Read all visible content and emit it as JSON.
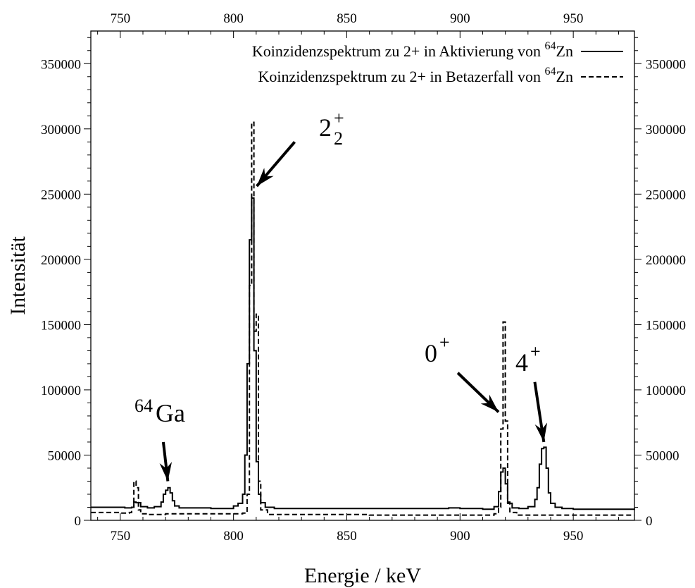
{
  "chart_data": {
    "type": "line",
    "xlabel": "Energie / keV",
    "ylabel": "Intensität",
    "xlim": [
      737,
      977
    ],
    "ylim": [
      0,
      375000
    ],
    "x_ticks": [
      750,
      800,
      850,
      900,
      950
    ],
    "y_ticks": [
      0,
      50000,
      100000,
      150000,
      200000,
      250000,
      300000,
      350000
    ],
    "grid": false,
    "legend_position": "top-right",
    "series": [
      {
        "name": "Koinzidenzspektrum zu 2+ in Aktivierung von 64Zn",
        "name_parts": {
          "text": "Koinzidenzspektrum zu 2+ in Aktivierung von ",
          "sup": "64",
          "tail": "Zn"
        },
        "style": "solid",
        "x": [
          737,
          745,
          752,
          755,
          756,
          757,
          759,
          762,
          765,
          768,
          769,
          770,
          771,
          772,
          773,
          774,
          776,
          780,
          790,
          800,
          802,
          804,
          805,
          806,
          807,
          808,
          809,
          810,
          811,
          812,
          814,
          818,
          830,
          850,
          880,
          895,
          900,
          910,
          915,
          917,
          918,
          919,
          920,
          921,
          923,
          926,
          930,
          933,
          934,
          935,
          936,
          937,
          938,
          939,
          940,
          942,
          945,
          950,
          960,
          977
        ],
        "y": [
          10000,
          10000,
          9500,
          10000,
          14000,
          13500,
          10500,
          9500,
          10500,
          14000,
          20000,
          23000,
          25000,
          21000,
          15000,
          11000,
          9500,
          9500,
          9000,
          11000,
          13000,
          20000,
          50000,
          120000,
          215000,
          247000,
          130000,
          45000,
          20000,
          13500,
          10000,
          9000,
          9000,
          9000,
          9000,
          9500,
          9000,
          8500,
          10500,
          22000,
          37000,
          40000,
          28000,
          13000,
          9500,
          9000,
          10500,
          16000,
          25000,
          43000,
          55000,
          56000,
          40000,
          21000,
          13000,
          10000,
          9000,
          8500,
          8500,
          8000
        ]
      },
      {
        "name": "Koinzidenzspektrum zu 2+ in Betazerfall von 64Zn",
        "name_parts": {
          "text": "Koinzidenzspektrum zu 2+ in Betazerfall von ",
          "sup": "64",
          "tail": "Zn"
        },
        "style": "dashed",
        "x": [
          737,
          750,
          754,
          755,
          756,
          757,
          758,
          759,
          762,
          770,
          780,
          800,
          804,
          806,
          807,
          808,
          809,
          810,
          811,
          812,
          815,
          830,
          860,
          900,
          915,
          917,
          918,
          919,
          920,
          921,
          922,
          925,
          940,
          977
        ],
        "y": [
          6000,
          5500,
          6000,
          10000,
          30000,
          25000,
          8000,
          5000,
          4500,
          5000,
          5000,
          5000,
          5500,
          20000,
          180000,
          305000,
          145000,
          158000,
          30000,
          8000,
          4500,
          4500,
          4000,
          4000,
          5000,
          10000,
          70000,
          152000,
          76000,
          14000,
          6000,
          4000,
          4000,
          4000
        ]
      }
    ],
    "annotations": [
      {
        "base": "2",
        "sup": "+",
        "sub": "2",
        "at": [
          809,
          255000
        ],
        "from": [
          827,
          290000
        ]
      },
      {
        "base": "64",
        "tail": "Ga",
        "superscript_first": true,
        "at": [
          771,
          30000
        ],
        "from": [
          769,
          60000
        ]
      },
      {
        "base": "0",
        "sup": "+",
        "at": [
          917,
          83000
        ],
        "from": [
          899,
          113000
        ]
      },
      {
        "base": "4",
        "sup": "+",
        "at": [
          937,
          60000
        ],
        "from": [
          933,
          106000
        ]
      }
    ]
  }
}
